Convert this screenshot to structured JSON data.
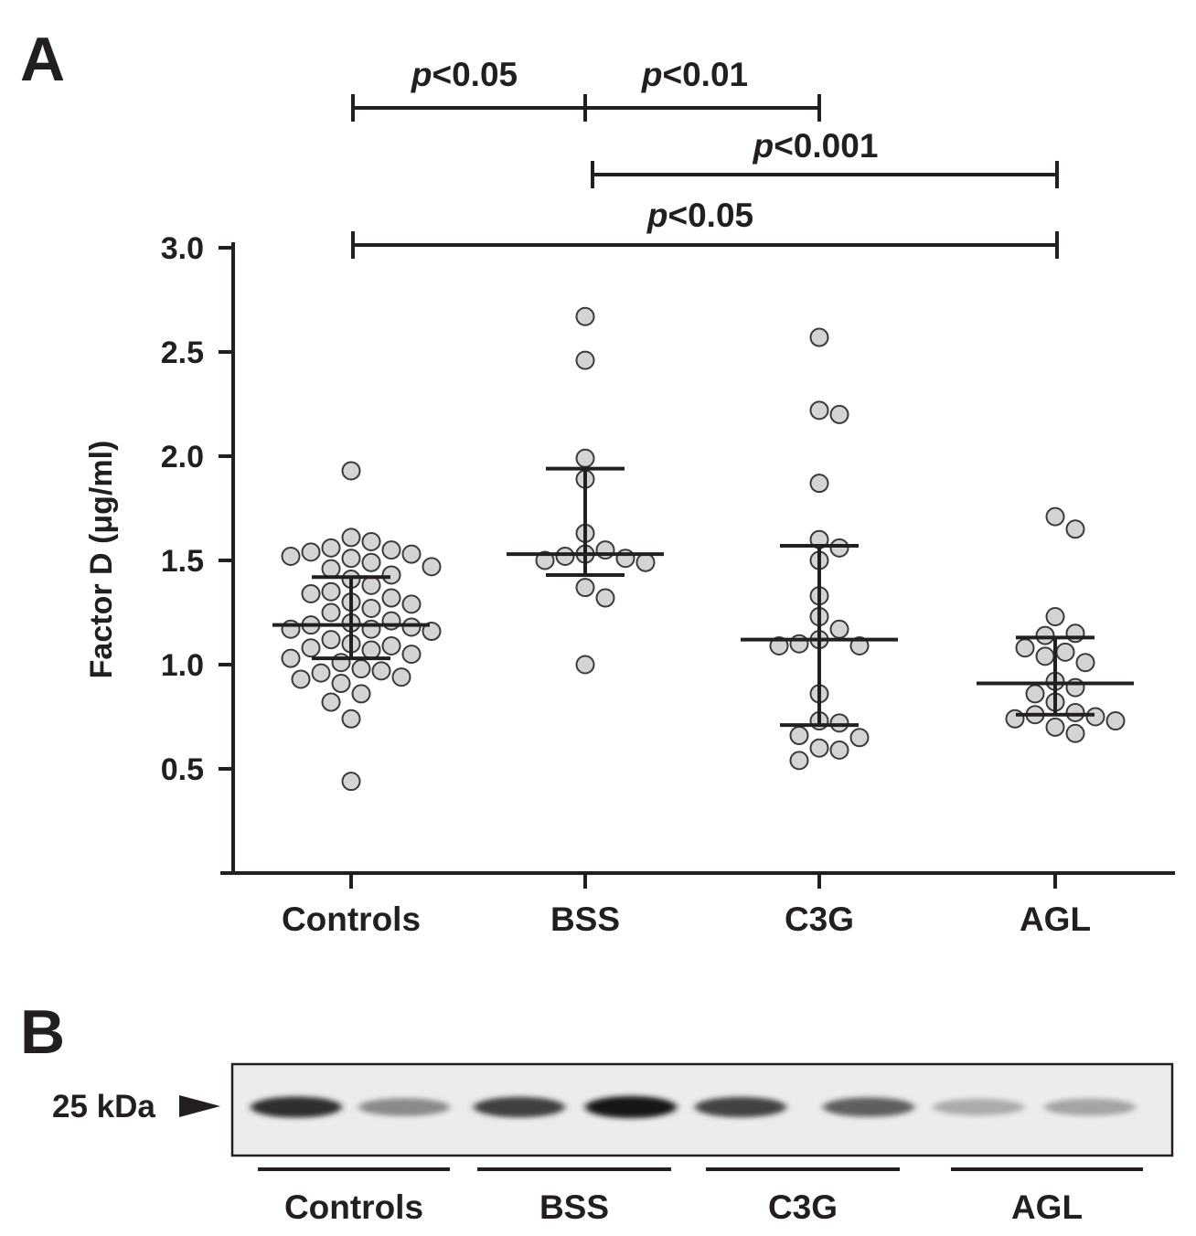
{
  "panels": {
    "a_label": "A",
    "b_label": "B"
  },
  "chart_data": {
    "type": "scatter",
    "ylabel": "Factor D (μg/ml)",
    "ylim": [
      0,
      3.0
    ],
    "yticks": [
      "3.0",
      "2.5",
      "2.0",
      "1.5",
      "1.0",
      "0.5"
    ],
    "categories": [
      "Controls",
      "BSS",
      "C3G",
      "AGL"
    ],
    "groups": [
      {
        "name": "Controls",
        "median": 1.19,
        "q1": 1.03,
        "q3": 1.42,
        "points": [
          1.93,
          1.61,
          1.59,
          1.56,
          1.55,
          1.54,
          1.53,
          1.52,
          1.51,
          1.49,
          1.47,
          1.46,
          1.43,
          1.41,
          1.38,
          1.35,
          1.34,
          1.32,
          1.3,
          1.29,
          1.27,
          1.25,
          1.21,
          1.2,
          1.19,
          1.18,
          1.17,
          1.17,
          1.16,
          1.12,
          1.1,
          1.09,
          1.08,
          1.07,
          1.05,
          1.03,
          1.01,
          0.98,
          0.97,
          0.96,
          0.94,
          0.93,
          0.91,
          0.86,
          0.82,
          0.74,
          0.44
        ]
      },
      {
        "name": "BSS",
        "median": 1.53,
        "q1": 1.43,
        "q3": 1.94,
        "points": [
          2.67,
          2.46,
          1.99,
          1.89,
          1.63,
          1.55,
          1.53,
          1.52,
          1.51,
          1.5,
          1.49,
          1.37,
          1.32,
          1.0
        ]
      },
      {
        "name": "C3G",
        "median": 1.12,
        "q1": 0.71,
        "q3": 1.57,
        "points": [
          2.57,
          2.22,
          2.2,
          1.87,
          1.6,
          1.56,
          1.5,
          1.33,
          1.23,
          1.17,
          1.12,
          1.1,
          1.09,
          1.09,
          0.86,
          0.73,
          0.72,
          0.66,
          0.65,
          0.6,
          0.59,
          0.54
        ]
      },
      {
        "name": "AGL",
        "median": 0.91,
        "q1": 0.76,
        "q3": 1.13,
        "points": [
          1.71,
          1.65,
          1.23,
          1.15,
          1.14,
          1.08,
          1.06,
          1.04,
          1.01,
          0.92,
          0.89,
          0.86,
          0.82,
          0.77,
          0.76,
          0.75,
          0.74,
          0.73,
          0.7,
          0.67
        ]
      }
    ],
    "significance": [
      {
        "from": "Controls",
        "to": "BSS",
        "p": "<0.05"
      },
      {
        "from": "BSS",
        "to": "C3G",
        "p": "<0.01"
      },
      {
        "from": "BSS",
        "to": "AGL",
        "p": "<0.001"
      },
      {
        "from": "Controls",
        "to": "AGL",
        "p": "<0.05"
      }
    ],
    "point_color": "#d4d4d4",
    "line_color": "#231f20"
  },
  "blot": {
    "marker_label": "25 kDa",
    "groups": [
      "Controls",
      "BSS",
      "C3G",
      "AGL"
    ],
    "band_intensity": [
      0.88,
      0.45,
      0.8,
      1.0,
      0.78,
      0.65,
      0.3,
      0.33
    ]
  }
}
